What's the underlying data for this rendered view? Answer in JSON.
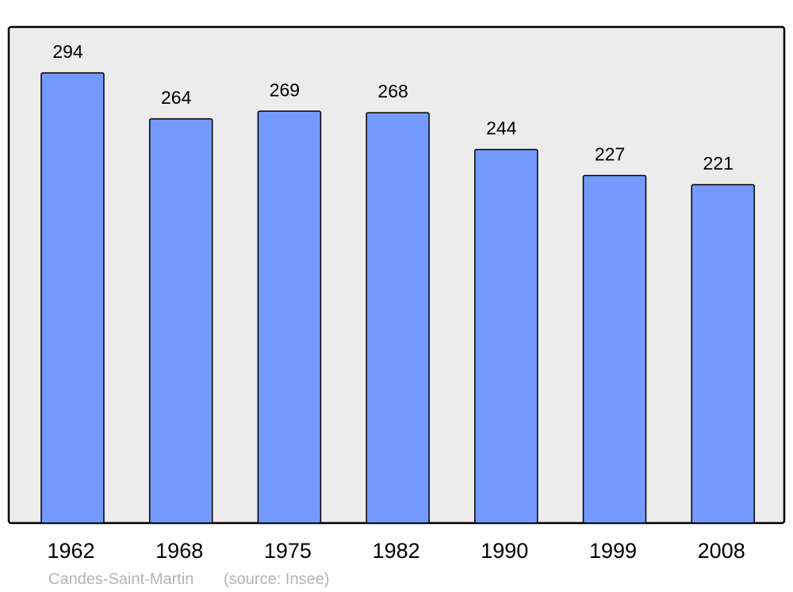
{
  "chart_data": {
    "type": "bar",
    "categories": [
      "1962",
      "1968",
      "1975",
      "1982",
      "1990",
      "1999",
      "2008"
    ],
    "values": [
      294,
      264,
      269,
      268,
      244,
      227,
      221
    ],
    "data_labels": [
      "294",
      "264",
      "269",
      "268",
      "244",
      "227",
      "221"
    ],
    "ylim": [
      0,
      324
    ],
    "grid": false,
    "legend": "none",
    "colors": {
      "bar": "#7499ff",
      "plot_background": "#ececec",
      "border": "#000000",
      "footer_text": "#b4b4b4"
    }
  },
  "footer": {
    "place": "Candes-Saint-Martin",
    "source": "(source: Insee)"
  }
}
